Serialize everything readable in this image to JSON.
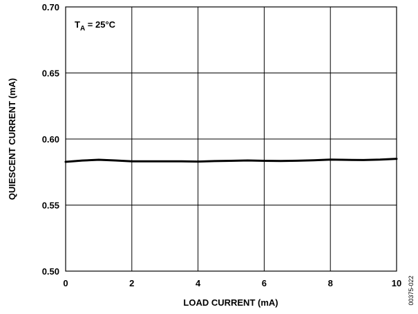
{
  "chart_data": {
    "type": "line",
    "xlabel": "LOAD CURRENT (mA)",
    "ylabel": "QUIESCENT CURRENT (mA)",
    "xlim": [
      0,
      10
    ],
    "ylim": [
      0.5,
      0.7
    ],
    "x_ticks": [
      "0",
      "2",
      "4",
      "6",
      "8",
      "10"
    ],
    "y_ticks": [
      "0.70",
      "0.65",
      "0.60",
      "0.55",
      "0.50"
    ],
    "grid": true,
    "annotation": {
      "main": "T",
      "subscript": "A",
      "rest": " = 25°C"
    },
    "series": [
      {
        "x": [
          0,
          0.5,
          1.0,
          1.5,
          2.0,
          2.5,
          3.0,
          3.5,
          4.0,
          4.5,
          5.0,
          5.5,
          6.0,
          6.5,
          7.0,
          7.5,
          8.0,
          8.5,
          9.0,
          9.5,
          10
        ],
        "values": [
          0.5827,
          0.5837,
          0.5843,
          0.5838,
          0.5831,
          0.5831,
          0.5831,
          0.5831,
          0.5829,
          0.5833,
          0.5835,
          0.5838,
          0.5835,
          0.5834,
          0.5836,
          0.5839,
          0.5844,
          0.5842,
          0.5841,
          0.5844,
          0.585
        ],
        "color": "#000000"
      }
    ]
  },
  "figure_id": "00375-022"
}
